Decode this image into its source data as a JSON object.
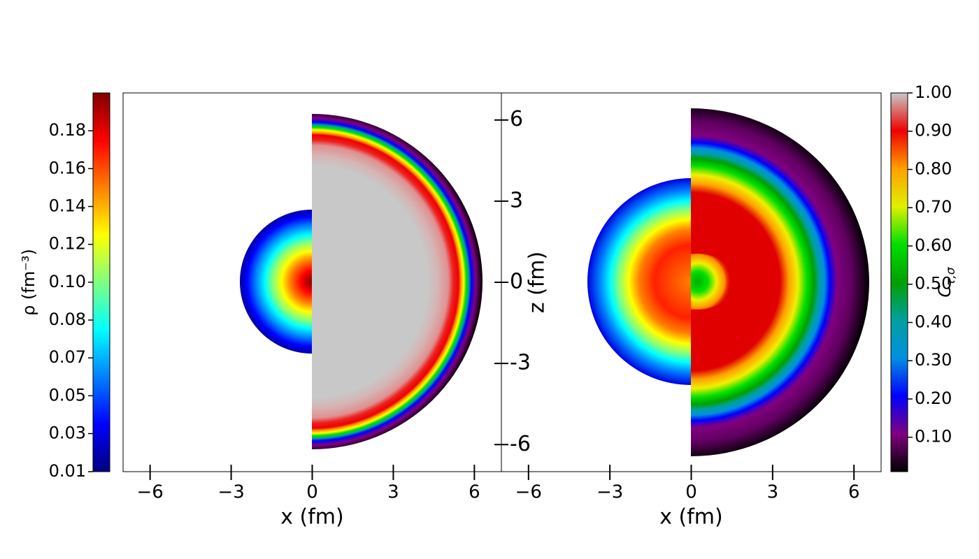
{
  "chart_data": [
    {
      "type": "heatmap",
      "xlabel": "x (fm)",
      "xlim": [
        -7,
        7
      ],
      "xticks": [
        {
          "value": -6,
          "label": "−6"
        },
        {
          "value": -3,
          "label": "−3"
        },
        0,
        3,
        6
      ],
      "colorbar_label": "ρ (fm⁻³)",
      "clim": [
        0.01,
        0.1951
      ],
      "cticks": [
        {
          "value": 0.01,
          "label": "0.01"
        },
        {
          "value": 0.0286,
          "label": "0.03"
        },
        {
          "value": 0.0471,
          "label": "0.05"
        },
        {
          "value": 0.0656,
          "label": "0.07"
        },
        {
          "value": 0.0841,
          "label": "0.08"
        },
        {
          "value": 0.1026,
          "label": "0.10"
        },
        {
          "value": 0.1211,
          "label": "0.12"
        },
        {
          "value": 0.1396,
          "label": "0.14"
        },
        {
          "value": 0.1581,
          "label": "0.16"
        },
        {
          "value": 0.1766,
          "label": "0.18"
        }
      ],
      "colormap": [
        "#000080",
        "#0000ff",
        "#0080ff",
        "#00ffff",
        "#80ff80",
        "#ffff00",
        "#ff8000",
        "#ff0000",
        "#800000"
      ]
    },
    {
      "type": "heatmap",
      "xlabel": "x (fm)",
      "xlim": [
        -7,
        7
      ],
      "xticks": [
        {
          "value": -6,
          "label": "−6"
        },
        {
          "value": -3,
          "label": "−3"
        },
        0,
        3,
        6
      ],
      "ylabel": "z (fm)",
      "ylim": [
        -7,
        7
      ],
      "yticks": [
        6,
        3,
        0,
        -3,
        -6
      ],
      "colorbar_label": "C",
      "colorbar_label_sub": "τ,σ",
      "clim": [
        0.01,
        1
      ],
      "cticks": [
        {
          "value": 1,
          "label": "1.00"
        },
        {
          "value": 0.9,
          "label": "0.90"
        },
        {
          "value": 0.8,
          "label": "0.80"
        },
        {
          "value": 0.7,
          "label": "0.70"
        },
        {
          "value": 0.6,
          "label": "0.60"
        },
        {
          "value": 0.5,
          "label": "0.50"
        },
        {
          "value": 0.4,
          "label": "0.40"
        },
        {
          "value": 0.3,
          "label": "0.30"
        },
        {
          "value": 0.2,
          "label": "0.20"
        },
        {
          "value": 0.1,
          "label": "0.10"
        }
      ],
      "colormap": [
        "#000000",
        "#800080",
        "#0000ff",
        "#0090e0",
        "#00a0a0",
        "#00a000",
        "#00e000",
        "#e0f000",
        "#ffa000",
        "#f00000",
        "#c8c8c8"
      ]
    }
  ]
}
